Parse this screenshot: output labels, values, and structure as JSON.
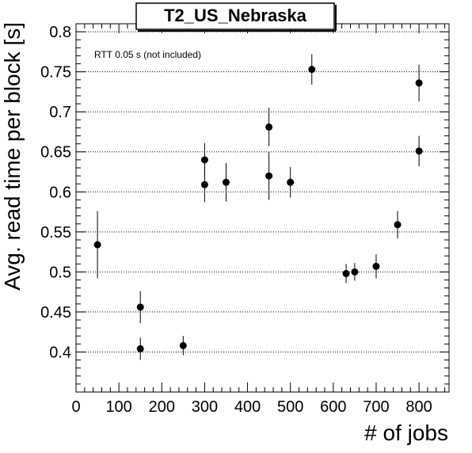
{
  "chart_data": {
    "type": "scatter",
    "title": "T2_US_Nebraska",
    "annotation": "RTT 0.05 s (not included)",
    "xlabel": "# of jobs",
    "ylabel": "Avg. read time per block [s]",
    "xlim": [
      0,
      870
    ],
    "ylim": [
      0.35,
      0.81
    ],
    "x_ticks": [
      0,
      100,
      200,
      300,
      400,
      500,
      600,
      700,
      800
    ],
    "y_ticks": [
      0.4,
      0.45,
      0.5,
      0.55,
      0.6,
      0.65,
      0.7,
      0.75,
      0.8
    ],
    "grid": "horizontal dotted",
    "marker_color": "#000000",
    "points": [
      {
        "x": 50,
        "y": 0.534,
        "err": 0.042
      },
      {
        "x": 150,
        "y": 0.456,
        "err": 0.02
      },
      {
        "x": 150,
        "y": 0.404,
        "err": 0.014
      },
      {
        "x": 250,
        "y": 0.408,
        "err": 0.012
      },
      {
        "x": 300,
        "y": 0.609,
        "err": 0.022
      },
      {
        "x": 300,
        "y": 0.64,
        "err": 0.021
      },
      {
        "x": 350,
        "y": 0.612,
        "err": 0.024
      },
      {
        "x": 450,
        "y": 0.62,
        "err": 0.03
      },
      {
        "x": 450,
        "y": 0.681,
        "err": 0.024
      },
      {
        "x": 500,
        "y": 0.612,
        "err": 0.019
      },
      {
        "x": 550,
        "y": 0.753,
        "err": 0.019
      },
      {
        "x": 630,
        "y": 0.498,
        "err": 0.012
      },
      {
        "x": 650,
        "y": 0.5,
        "err": 0.011
      },
      {
        "x": 700,
        "y": 0.507,
        "err": 0.015
      },
      {
        "x": 750,
        "y": 0.559,
        "err": 0.017
      },
      {
        "x": 800,
        "y": 0.651,
        "err": 0.019
      },
      {
        "x": 800,
        "y": 0.736,
        "err": 0.023
      }
    ]
  }
}
